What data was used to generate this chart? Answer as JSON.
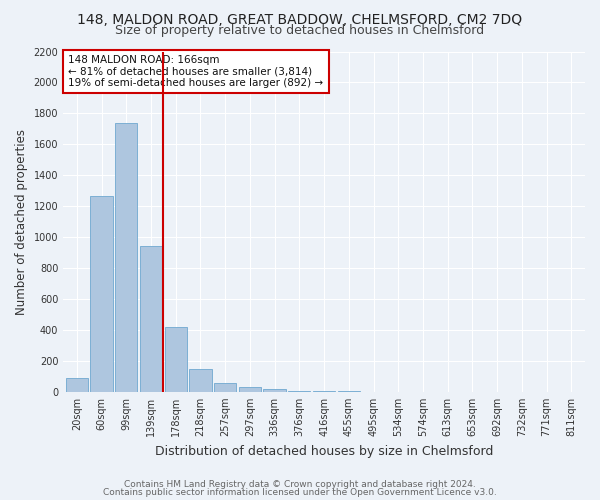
{
  "title": "148, MALDON ROAD, GREAT BADDOW, CHELMSFORD, CM2 7DQ",
  "subtitle": "Size of property relative to detached houses in Chelmsford",
  "xlabel": "Distribution of detached houses by size in Chelmsford",
  "ylabel": "Number of detached properties",
  "categories": [
    "20sqm",
    "60sqm",
    "99sqm",
    "139sqm",
    "178sqm",
    "218sqm",
    "257sqm",
    "297sqm",
    "336sqm",
    "376sqm",
    "416sqm",
    "455sqm",
    "495sqm",
    "534sqm",
    "574sqm",
    "613sqm",
    "653sqm",
    "692sqm",
    "732sqm",
    "771sqm",
    "811sqm"
  ],
  "values": [
    90,
    1265,
    1740,
    940,
    420,
    150,
    60,
    30,
    15,
    8,
    4,
    2,
    1,
    1,
    0,
    0,
    0,
    0,
    0,
    0,
    0
  ],
  "bar_color": "#aec6df",
  "bar_edge_color": "#6fa8d0",
  "vline_index": 3.5,
  "vline_color": "#cc0000",
  "annotation_text": "148 MALDON ROAD: 166sqm\n← 81% of detached houses are smaller (3,814)\n19% of semi-detached houses are larger (892) →",
  "annotation_box_color": "#cc0000",
  "ylim": [
    0,
    2200
  ],
  "yticks": [
    0,
    200,
    400,
    600,
    800,
    1000,
    1200,
    1400,
    1600,
    1800,
    2000,
    2200
  ],
  "bg_color": "#edf2f8",
  "grid_color": "#ffffff",
  "footer_line1": "Contains HM Land Registry data © Crown copyright and database right 2024.",
  "footer_line2": "Contains public sector information licensed under the Open Government Licence v3.0.",
  "title_fontsize": 10,
  "subtitle_fontsize": 9,
  "xlabel_fontsize": 9,
  "ylabel_fontsize": 8.5,
  "tick_fontsize": 7,
  "annotation_fontsize": 7.5,
  "footer_fontsize": 6.5
}
